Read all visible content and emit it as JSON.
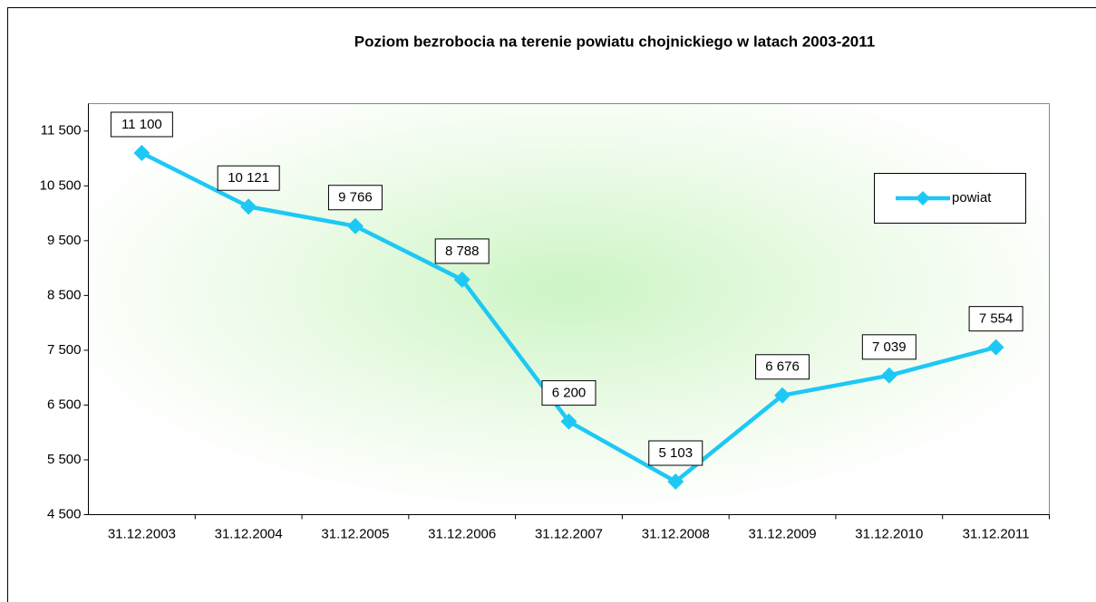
{
  "chart_data": {
    "type": "line",
    "title": "Poziom bezrobocia na terenie powiatu chojnickiego w latach 2003-2011",
    "categories": [
      "31.12.2003",
      "31.12.2004",
      "31.12.2005",
      "31.12.2006",
      "31.12.2007",
      "31.12.2008",
      "31.12.2009",
      "31.12.2010",
      "31.12.2011"
    ],
    "series": [
      {
        "name": "powiat",
        "color": "#1ec8f5",
        "values": [
          11100,
          10121,
          9766,
          8788,
          6200,
          5103,
          6676,
          7039,
          7554
        ],
        "value_labels": [
          "11 100",
          "10 121",
          "9 766",
          "8 788",
          "6 200",
          "5 103",
          "6 676",
          "7 039",
          "7 554"
        ]
      }
    ],
    "ylim": [
      4500,
      12000
    ],
    "yticks": [
      {
        "value": 4500,
        "label": "4 500"
      },
      {
        "value": 5500,
        "label": "5 500"
      },
      {
        "value": 6500,
        "label": "6 500"
      },
      {
        "value": 7500,
        "label": "7 500"
      },
      {
        "value": 8500,
        "label": "8 500"
      },
      {
        "value": 9500,
        "label": "9 500"
      },
      {
        "value": 10500,
        "label": "10 500"
      },
      {
        "value": 11500,
        "label": "11 500"
      }
    ],
    "legend": "right"
  }
}
